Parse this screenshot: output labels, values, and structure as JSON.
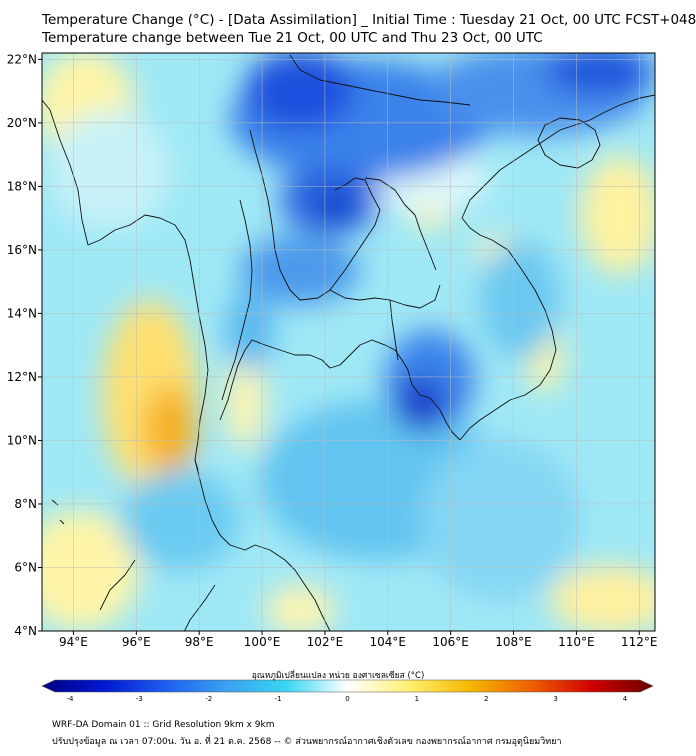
{
  "title": {
    "line1": "Temperature Change (°C) - [Data Assimilation] _ Initial Time : Tuesday 21 Oct, 00 UTC FCST+048",
    "line2": "Temperature change between Tue 21 Oct, 00 UTC and Thu 23 Oct, 00 UTC"
  },
  "map": {
    "lon_range": [
      93,
      112.5
    ],
    "lat_range": [
      4,
      22.2
    ],
    "lon_ticks": [
      "94°E",
      "96°E",
      "98°E",
      "100°E",
      "102°E",
      "104°E",
      "106°E",
      "108°E",
      "110°E",
      "112°E"
    ],
    "lat_ticks": [
      "4°N",
      "6°N",
      "8°N",
      "10°N",
      "12°N",
      "14°N",
      "16°N",
      "18°N",
      "20°N",
      "22°N"
    ],
    "grid": true
  },
  "colorbar": {
    "title": "อุณหภูมิเปลี่ยนแปลง หน่วย องศาเซลเซียส (°C)",
    "ticks": [
      "-4",
      "-3",
      "-2",
      "-1",
      "0",
      "1",
      "2",
      "3",
      "4"
    ],
    "range": [
      -4,
      4
    ],
    "colors": [
      "#000080",
      "#0018d0",
      "#1e5cf0",
      "#3aa0f0",
      "#38d6f2",
      "#ffffff",
      "#fff070",
      "#f5b800",
      "#f06000",
      "#d00000",
      "#6a0000"
    ]
  },
  "footer": {
    "line1": "WRF-DA Domain 01 :: Grid Resolution 9km x 9km",
    "line2": "ปรับปรุงข้อมูล ณ เวลา 07:00น. วัน อ. ที่ 21 ต.ค. 2568 -- © ส่วนพยากรณ์อากาศเชิงตัวเลข กองพยากรณ์อากาศ กรมอุตุนิยมวิทยา"
  }
}
